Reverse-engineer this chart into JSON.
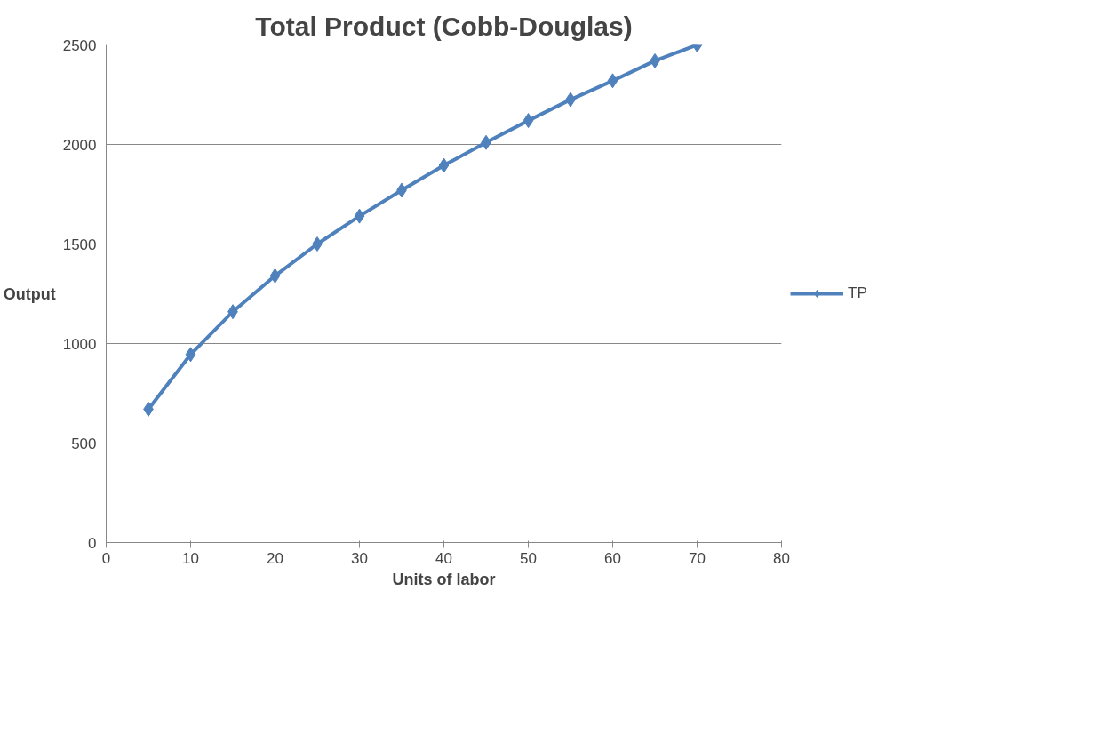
{
  "chart_data": {
    "type": "line",
    "title": "Total Product (Cobb-Douglas)",
    "xlabel": "Units of labor",
    "ylabel": "Output",
    "x": [
      5,
      10,
      15,
      20,
      25,
      30,
      35,
      40,
      45,
      50,
      55,
      60,
      65,
      70
    ],
    "series": [
      {
        "name": "TP",
        "color": "#4f81bd",
        "values": [
          670,
          945,
          1160,
          1340,
          1500,
          1640,
          1770,
          1895,
          2010,
          2120,
          2225,
          2320,
          2420,
          2500
        ]
      }
    ],
    "xlim": [
      0,
      80
    ],
    "xticks": [
      0,
      10,
      20,
      30,
      40,
      50,
      60,
      70,
      80
    ],
    "ylim": [
      0,
      2500
    ],
    "yticks": [
      0,
      500,
      1000,
      1500,
      2000,
      2500
    ],
    "grid": "y",
    "legend": "right",
    "marker": "diamond",
    "line_style": "solid"
  }
}
